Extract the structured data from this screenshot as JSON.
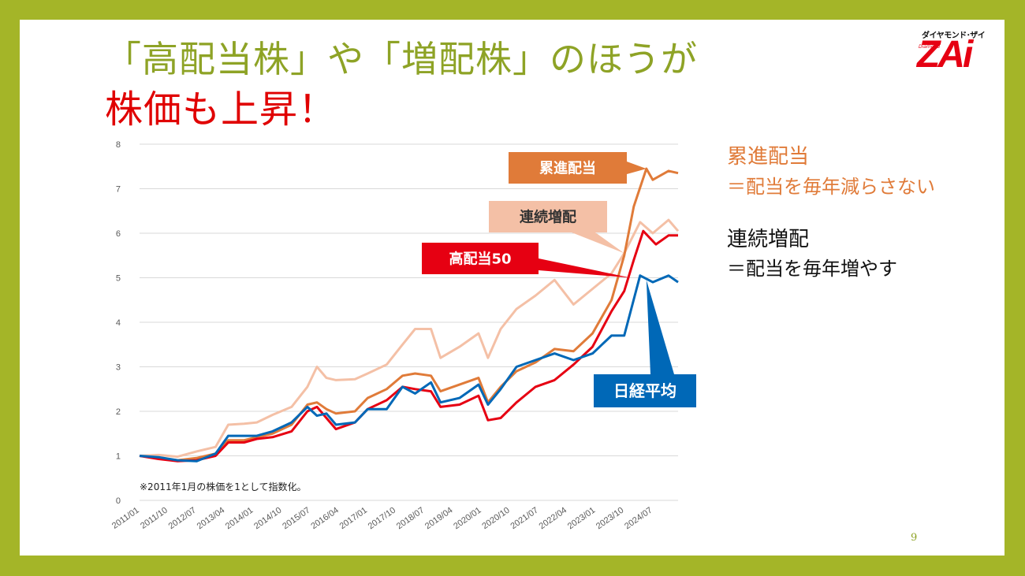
{
  "title": {
    "line1": "「高配当株」や「増配株」のほうが",
    "line2": "株価も上昇！"
  },
  "logo": {
    "kana": "ダイヤモンド･ザイ",
    "main": "ZAi",
    "sub": "Diamond"
  },
  "side_text": {
    "heading1": "累進配当",
    "desc1": "＝配当を毎年減らさない",
    "heading2": "連続増配",
    "desc2": "＝配当を毎年増やす"
  },
  "page_number": "9",
  "colors": {
    "frame": "#a4b528",
    "orange": "#e07b39",
    "peach": "#f4c0a6",
    "red": "#e60012",
    "blue": "#0068b7"
  },
  "chart_data": {
    "type": "line",
    "ylim": [
      0,
      8
    ],
    "yticks": [
      0,
      1,
      2,
      3,
      4,
      5,
      6,
      7,
      8
    ],
    "xlim": [
      "2011/01",
      "2025/03"
    ],
    "xticks": [
      "2011/01",
      "2011/10",
      "2012/07",
      "2013/04",
      "2014/01",
      "2014/10",
      "2015/07",
      "2016/04",
      "2017/01",
      "2017/10",
      "2018/07",
      "2019/04",
      "2020/01",
      "2020/10",
      "2021/07",
      "2022/04",
      "2023/01",
      "2023/10",
      "2024/07"
    ],
    "grid": true,
    "note": "※2011年1月の株価を1として指数化。",
    "series": [
      {
        "name": "連続増配",
        "color": "#f4c0a6",
        "points": [
          [
            "2011/01",
            1.0
          ],
          [
            "2011/07",
            1.02
          ],
          [
            "2012/01",
            0.98
          ],
          [
            "2012/07",
            1.1
          ],
          [
            "2013/01",
            1.2
          ],
          [
            "2013/05",
            1.7
          ],
          [
            "2013/10",
            1.72
          ],
          [
            "2014/02",
            1.75
          ],
          [
            "2014/07",
            1.92
          ],
          [
            "2015/01",
            2.1
          ],
          [
            "2015/06",
            2.55
          ],
          [
            "2015/09",
            3.0
          ],
          [
            "2015/12",
            2.75
          ],
          [
            "2016/03",
            2.7
          ],
          [
            "2016/09",
            2.72
          ],
          [
            "2017/01",
            2.85
          ],
          [
            "2017/07",
            3.05
          ],
          [
            "2017/12",
            3.5
          ],
          [
            "2018/04",
            3.85
          ],
          [
            "2018/09",
            3.85
          ],
          [
            "2018/12",
            3.2
          ],
          [
            "2019/06",
            3.45
          ],
          [
            "2019/12",
            3.75
          ],
          [
            "2020/03",
            3.2
          ],
          [
            "2020/07",
            3.85
          ],
          [
            "2020/12",
            4.3
          ],
          [
            "2021/06",
            4.6
          ],
          [
            "2021/12",
            4.95
          ],
          [
            "2022/06",
            4.4
          ],
          [
            "2022/12",
            4.75
          ],
          [
            "2023/06",
            5.1
          ],
          [
            "2023/10",
            5.55
          ],
          [
            "2024/03",
            6.25
          ],
          [
            "2024/07",
            6.0
          ],
          [
            "2024/12",
            6.3
          ],
          [
            "2025/03",
            6.05
          ]
        ]
      },
      {
        "name": "累進配当",
        "color": "#e07b39",
        "points": [
          [
            "2011/01",
            1.0
          ],
          [
            "2011/07",
            0.95
          ],
          [
            "2012/01",
            0.9
          ],
          [
            "2012/07",
            0.95
          ],
          [
            "2013/01",
            1.05
          ],
          [
            "2013/05",
            1.35
          ],
          [
            "2013/10",
            1.35
          ],
          [
            "2014/02",
            1.42
          ],
          [
            "2014/07",
            1.5
          ],
          [
            "2015/01",
            1.7
          ],
          [
            "2015/06",
            2.15
          ],
          [
            "2015/09",
            2.2
          ],
          [
            "2015/12",
            2.05
          ],
          [
            "2016/03",
            1.95
          ],
          [
            "2016/09",
            2.0
          ],
          [
            "2017/01",
            2.3
          ],
          [
            "2017/07",
            2.5
          ],
          [
            "2017/12",
            2.8
          ],
          [
            "2018/04",
            2.85
          ],
          [
            "2018/09",
            2.8
          ],
          [
            "2018/12",
            2.45
          ],
          [
            "2019/06",
            2.6
          ],
          [
            "2019/12",
            2.75
          ],
          [
            "2020/03",
            2.2
          ],
          [
            "2020/07",
            2.55
          ],
          [
            "2020/12",
            2.9
          ],
          [
            "2021/06",
            3.1
          ],
          [
            "2021/12",
            3.4
          ],
          [
            "2022/06",
            3.35
          ],
          [
            "2022/12",
            3.75
          ],
          [
            "2023/06",
            4.5
          ],
          [
            "2023/10",
            5.5
          ],
          [
            "2024/01",
            6.6
          ],
          [
            "2024/05",
            7.45
          ],
          [
            "2024/07",
            7.2
          ],
          [
            "2024/12",
            7.4
          ],
          [
            "2025/03",
            7.35
          ]
        ]
      },
      {
        "name": "高配当50",
        "color": "#e60012",
        "points": [
          [
            "2011/01",
            1.0
          ],
          [
            "2011/07",
            0.93
          ],
          [
            "2012/01",
            0.88
          ],
          [
            "2012/07",
            0.9
          ],
          [
            "2013/01",
            1.0
          ],
          [
            "2013/05",
            1.3
          ],
          [
            "2013/10",
            1.3
          ],
          [
            "2014/02",
            1.38
          ],
          [
            "2014/07",
            1.42
          ],
          [
            "2015/01",
            1.55
          ],
          [
            "2015/06",
            2.0
          ],
          [
            "2015/09",
            2.1
          ],
          [
            "2015/12",
            1.85
          ],
          [
            "2016/03",
            1.6
          ],
          [
            "2016/09",
            1.75
          ],
          [
            "2017/01",
            2.05
          ],
          [
            "2017/07",
            2.25
          ],
          [
            "2017/12",
            2.55
          ],
          [
            "2018/04",
            2.5
          ],
          [
            "2018/09",
            2.45
          ],
          [
            "2018/12",
            2.1
          ],
          [
            "2019/06",
            2.15
          ],
          [
            "2019/12",
            2.35
          ],
          [
            "2020/03",
            1.8
          ],
          [
            "2020/07",
            1.85
          ],
          [
            "2020/12",
            2.2
          ],
          [
            "2021/06",
            2.55
          ],
          [
            "2021/12",
            2.7
          ],
          [
            "2022/06",
            3.05
          ],
          [
            "2022/12",
            3.45
          ],
          [
            "2023/06",
            4.25
          ],
          [
            "2023/10",
            4.7
          ],
          [
            "2024/01",
            5.4
          ],
          [
            "2024/04",
            6.05
          ],
          [
            "2024/08",
            5.75
          ],
          [
            "2024/12",
            5.95
          ],
          [
            "2025/03",
            5.95
          ]
        ]
      },
      {
        "name": "日経平均",
        "color": "#0068b7",
        "points": [
          [
            "2011/01",
            1.0
          ],
          [
            "2011/07",
            0.97
          ],
          [
            "2012/01",
            0.9
          ],
          [
            "2012/07",
            0.88
          ],
          [
            "2013/01",
            1.05
          ],
          [
            "2013/05",
            1.45
          ],
          [
            "2013/10",
            1.45
          ],
          [
            "2014/02",
            1.45
          ],
          [
            "2014/07",
            1.55
          ],
          [
            "2015/01",
            1.75
          ],
          [
            "2015/06",
            2.1
          ],
          [
            "2015/09",
            1.9
          ],
          [
            "2015/12",
            1.95
          ],
          [
            "2016/03",
            1.7
          ],
          [
            "2016/09",
            1.75
          ],
          [
            "2017/01",
            2.05
          ],
          [
            "2017/07",
            2.05
          ],
          [
            "2017/12",
            2.55
          ],
          [
            "2018/04",
            2.4
          ],
          [
            "2018/09",
            2.65
          ],
          [
            "2018/12",
            2.2
          ],
          [
            "2019/06",
            2.3
          ],
          [
            "2019/12",
            2.6
          ],
          [
            "2020/03",
            2.15
          ],
          [
            "2020/07",
            2.5
          ],
          [
            "2020/12",
            3.0
          ],
          [
            "2021/06",
            3.15
          ],
          [
            "2021/12",
            3.3
          ],
          [
            "2022/06",
            3.15
          ],
          [
            "2022/12",
            3.3
          ],
          [
            "2023/06",
            3.7
          ],
          [
            "2023/10",
            3.7
          ],
          [
            "2024/03",
            5.05
          ],
          [
            "2024/07",
            4.9
          ],
          [
            "2024/12",
            5.05
          ],
          [
            "2025/03",
            4.9
          ]
        ]
      }
    ],
    "annotations": [
      {
        "text": "累進配当",
        "series": "累進配当",
        "fill": "#e07b39",
        "text_color": "#ffffff"
      },
      {
        "text": "連続増配",
        "series": "連続増配",
        "fill": "#f4c0a6",
        "text_color": "#333333"
      },
      {
        "text": "高配当50",
        "series": "高配当50",
        "fill": "#e60012",
        "text_color": "#ffffff"
      },
      {
        "text": "日経平均",
        "series": "日経平均",
        "fill": "#0068b7",
        "text_color": "#ffffff"
      }
    ]
  }
}
